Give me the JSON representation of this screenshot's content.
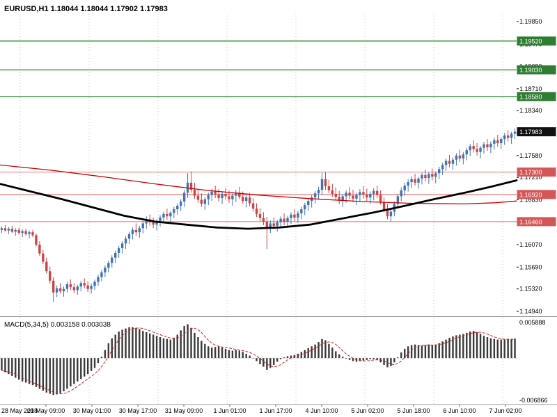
{
  "colors": {
    "background": "#ffffff",
    "bull": "#4173b3",
    "bear": "#cc4444",
    "resistance_line": "#2d8a2d",
    "resistance_badge": "#2e7d32",
    "support_line": "#f08080",
    "support_badge": "#d45757",
    "current_badge": "#111111",
    "ma_slow": "#000000",
    "ma_fast": "#cc0000",
    "macd_bar": "#3a3a3a",
    "macd_signal": "#cc2222",
    "axis_text": "#000000",
    "day_separator": "#c8c8c8",
    "panel_border": "#9a9a9a"
  },
  "chart_data": {
    "type": "candlestick",
    "symbol": "EURUSD",
    "timeframe": "H1",
    "title": "EURUSD,H1 1.18044 1.18044 1.17902 1.17983",
    "ohlc_display": {
      "open": "1.18044",
      "high": "1.18044",
      "low": "1.17902",
      "close": "1.17983"
    },
    "current_price": "1.17983",
    "price_range": {
      "axis_top": "1.19850",
      "axis_bottom": "1.14940"
    },
    "price_axis_labels": [
      "1.19850",
      "1.19470",
      "1.19090",
      "1.18710",
      "1.18340",
      "1.17960",
      "1.17580",
      "1.17210",
      "1.16830",
      "1.16450",
      "1.16070",
      "1.15690",
      "1.15320",
      "1.14940"
    ],
    "time_axis_labels": [
      "28 May 2018",
      "29 May 09:00",
      "30 May 01:00",
      "30 May 17:00",
      "31 May 09:00",
      "1 Jun 01:00",
      "1 Jun 17:00",
      "4 Jun 10:00",
      "5 Jun 02:00",
      "5 Jun 18:00",
      "6 Jun 10:00",
      "7 Jun 02:00"
    ],
    "resistance_levels": [
      "1.19520",
      "1.19030",
      "1.18580"
    ],
    "support_levels": [
      "1.17300",
      "1.16920",
      "1.16460"
    ],
    "ma_slow_points": [
      [
        0,
        1.171
      ],
      [
        0.06,
        1.1697
      ],
      [
        0.12,
        1.1684
      ],
      [
        0.18,
        1.167
      ],
      [
        0.24,
        1.1656
      ],
      [
        0.3,
        1.1646
      ],
      [
        0.36,
        1.1641
      ],
      [
        0.42,
        1.1636
      ],
      [
        0.48,
        1.1634
      ],
      [
        0.54,
        1.1636
      ],
      [
        0.6,
        1.1641
      ],
      [
        0.66,
        1.1651
      ],
      [
        0.72,
        1.1661
      ],
      [
        0.78,
        1.1672
      ],
      [
        0.84,
        1.1684
      ],
      [
        0.9,
        1.1695
      ],
      [
        0.95,
        1.1705
      ],
      [
        1.0,
        1.1716
      ]
    ],
    "ma_fast_points": [
      [
        0,
        1.1742
      ],
      [
        0.1,
        1.1733
      ],
      [
        0.2,
        1.1722
      ],
      [
        0.3,
        1.171
      ],
      [
        0.4,
        1.1699
      ],
      [
        0.5,
        1.1691
      ],
      [
        0.6,
        1.1685
      ],
      [
        0.7,
        1.168
      ],
      [
        0.8,
        1.1677
      ],
      [
        0.9,
        1.1676
      ],
      [
        0.96,
        1.1678
      ],
      [
        1.0,
        1.1681
      ]
    ],
    "candles": [
      [
        1.1632,
        1.1638,
        1.1627,
        1.1635
      ],
      [
        1.1635,
        1.164,
        1.1629,
        1.1631
      ],
      [
        1.1631,
        1.1637,
        1.1625,
        1.1634
      ],
      [
        1.1634,
        1.1639,
        1.1627,
        1.1629
      ],
      [
        1.1629,
        1.1635,
        1.1622,
        1.1632
      ],
      [
        1.1632,
        1.1636,
        1.1624,
        1.1627
      ],
      [
        1.1627,
        1.1633,
        1.162,
        1.163
      ],
      [
        1.163,
        1.1634,
        1.1622,
        1.1625
      ],
      [
        1.1625,
        1.1631,
        1.1618,
        1.1628
      ],
      [
        1.1628,
        1.1632,
        1.162,
        1.1623
      ],
      [
        1.1623,
        1.1626,
        1.1604,
        1.1607
      ],
      [
        1.1607,
        1.1613,
        1.1588,
        1.1592
      ],
      [
        1.1592,
        1.1598,
        1.1574,
        1.1578
      ],
      [
        1.1578,
        1.1585,
        1.1558,
        1.1562
      ],
      [
        1.1562,
        1.157,
        1.1541,
        1.1546
      ],
      [
        1.1546,
        1.1552,
        1.151,
        1.1526
      ],
      [
        1.1526,
        1.1538,
        1.1518,
        1.1533
      ],
      [
        1.1533,
        1.1542,
        1.1524,
        1.1528
      ],
      [
        1.1528,
        1.1536,
        1.1519,
        1.1532
      ],
      [
        1.1532,
        1.1544,
        1.1526,
        1.154
      ],
      [
        1.154,
        1.1548,
        1.153,
        1.1535
      ],
      [
        1.1535,
        1.1542,
        1.1525,
        1.153
      ],
      [
        1.153,
        1.1539,
        1.1522,
        1.1536
      ],
      [
        1.1536,
        1.1546,
        1.1528,
        1.1542
      ],
      [
        1.1542,
        1.155,
        1.1533,
        1.1538
      ],
      [
        1.1538,
        1.1545,
        1.1527,
        1.1532
      ],
      [
        1.1532,
        1.1541,
        1.1524,
        1.1537
      ],
      [
        1.1537,
        1.1548,
        1.153,
        1.1544
      ],
      [
        1.1544,
        1.1556,
        1.1537,
        1.1552
      ],
      [
        1.1552,
        1.1564,
        1.1545,
        1.156
      ],
      [
        1.156,
        1.1572,
        1.1552,
        1.1568
      ],
      [
        1.1568,
        1.158,
        1.156,
        1.1576
      ],
      [
        1.1576,
        1.1589,
        1.1568,
        1.1585
      ],
      [
        1.1585,
        1.1597,
        1.1576,
        1.1593
      ],
      [
        1.1593,
        1.1605,
        1.1585,
        1.1601
      ],
      [
        1.1601,
        1.1613,
        1.1592,
        1.1609
      ],
      [
        1.1609,
        1.1621,
        1.16,
        1.1617
      ],
      [
        1.1617,
        1.1629,
        1.1608,
        1.1625
      ],
      [
        1.1625,
        1.1636,
        1.1616,
        1.1632
      ],
      [
        1.1632,
        1.1643,
        1.1622,
        1.1628
      ],
      [
        1.1628,
        1.1639,
        1.1619,
        1.1635
      ],
      [
        1.1635,
        1.1647,
        1.1626,
        1.1643
      ],
      [
        1.1643,
        1.1655,
        1.1634,
        1.165
      ],
      [
        1.165,
        1.1658,
        1.1639,
        1.1645
      ],
      [
        1.1645,
        1.1653,
        1.1635,
        1.1641
      ],
      [
        1.1641,
        1.165,
        1.1631,
        1.1647
      ],
      [
        1.1647,
        1.1657,
        1.1638,
        1.1653
      ],
      [
        1.1653,
        1.1663,
        1.1644,
        1.1659
      ],
      [
        1.1659,
        1.1668,
        1.1649,
        1.1655
      ],
      [
        1.1655,
        1.1664,
        1.1645,
        1.1661
      ],
      [
        1.1661,
        1.1671,
        1.1652,
        1.1667
      ],
      [
        1.1667,
        1.1677,
        1.1658,
        1.1673
      ],
      [
        1.1673,
        1.1684,
        1.1664,
        1.168
      ],
      [
        1.168,
        1.17,
        1.1671,
        1.1695
      ],
      [
        1.1695,
        1.1728,
        1.1686,
        1.1712
      ],
      [
        1.1712,
        1.1731,
        1.1695,
        1.17
      ],
      [
        1.17,
        1.1712,
        1.1685,
        1.169
      ],
      [
        1.169,
        1.1701,
        1.1678,
        1.1683
      ],
      [
        1.1683,
        1.1694,
        1.1671,
        1.1676
      ],
      [
        1.1676,
        1.1688,
        1.1666,
        1.1684
      ],
      [
        1.1684,
        1.1695,
        1.1674,
        1.1691
      ],
      [
        1.1691,
        1.1702,
        1.1681,
        1.1697
      ],
      [
        1.1697,
        1.1707,
        1.1686,
        1.1692
      ],
      [
        1.1692,
        1.1701,
        1.168,
        1.1686
      ],
      [
        1.1686,
        1.1697,
        1.1676,
        1.1693
      ],
      [
        1.1693,
        1.1703,
        1.1683,
        1.1689
      ],
      [
        1.1689,
        1.1699,
        1.1678,
        1.1684
      ],
      [
        1.1684,
        1.1694,
        1.1673,
        1.169
      ],
      [
        1.169,
        1.17,
        1.1679,
        1.1695
      ],
      [
        1.1695,
        1.1705,
        1.1684,
        1.1688
      ],
      [
        1.1688,
        1.1697,
        1.1676,
        1.1681
      ],
      [
        1.1681,
        1.1691,
        1.167,
        1.1687
      ],
      [
        1.1687,
        1.1695,
        1.1672,
        1.1677
      ],
      [
        1.1677,
        1.1686,
        1.1663,
        1.1668
      ],
      [
        1.1668,
        1.1677,
        1.1654,
        1.1659
      ],
      [
        1.1659,
        1.1669,
        1.1646,
        1.1652
      ],
      [
        1.1652,
        1.1662,
        1.164,
        1.1646
      ],
      [
        1.1646,
        1.1654,
        1.16,
        1.1636
      ],
      [
        1.1636,
        1.1648,
        1.1627,
        1.1643
      ],
      [
        1.1643,
        1.1653,
        1.1633,
        1.1639
      ],
      [
        1.1639,
        1.1649,
        1.1629,
        1.1645
      ],
      [
        1.1645,
        1.1655,
        1.1635,
        1.1651
      ],
      [
        1.1651,
        1.166,
        1.164,
        1.1646
      ],
      [
        1.1646,
        1.1656,
        1.1636,
        1.1652
      ],
      [
        1.1652,
        1.1662,
        1.1642,
        1.1658
      ],
      [
        1.1658,
        1.1667,
        1.1647,
        1.1653
      ],
      [
        1.1653,
        1.1664,
        1.1644,
        1.166
      ],
      [
        1.166,
        1.1671,
        1.165,
        1.1667
      ],
      [
        1.1667,
        1.1678,
        1.1657,
        1.1674
      ],
      [
        1.1674,
        1.1685,
        1.1664,
        1.1681
      ],
      [
        1.1681,
        1.1691,
        1.167,
        1.1687
      ],
      [
        1.1687,
        1.1698,
        1.1677,
        1.1694
      ],
      [
        1.1694,
        1.1705,
        1.1684,
        1.17
      ],
      [
        1.17,
        1.1729,
        1.1691,
        1.1718
      ],
      [
        1.1718,
        1.173,
        1.17,
        1.1706
      ],
      [
        1.1706,
        1.1717,
        1.1694,
        1.1699
      ],
      [
        1.1699,
        1.171,
        1.1688,
        1.1693
      ],
      [
        1.1693,
        1.1704,
        1.1682,
        1.1688
      ],
      [
        1.1688,
        1.1698,
        1.1676,
        1.1682
      ],
      [
        1.1682,
        1.1693,
        1.1671,
        1.1689
      ],
      [
        1.1689,
        1.1699,
        1.1678,
        1.1695
      ],
      [
        1.1695,
        1.1705,
        1.1684,
        1.169
      ],
      [
        1.169,
        1.17,
        1.1679,
        1.1685
      ],
      [
        1.1685,
        1.1695,
        1.1674,
        1.1691
      ],
      [
        1.1691,
        1.1701,
        1.168,
        1.1696
      ],
      [
        1.1696,
        1.1706,
        1.1685,
        1.1692
      ],
      [
        1.1692,
        1.1702,
        1.1681,
        1.1687
      ],
      [
        1.1687,
        1.1697,
        1.1676,
        1.1693
      ],
      [
        1.1693,
        1.1703,
        1.1682,
        1.1698
      ],
      [
        1.1698,
        1.1707,
        1.1686,
        1.1691
      ],
      [
        1.1691,
        1.1699,
        1.1675,
        1.1679
      ],
      [
        1.1679,
        1.1687,
        1.1662,
        1.1666
      ],
      [
        1.1666,
        1.1676,
        1.165,
        1.1655
      ],
      [
        1.1655,
        1.1668,
        1.1646,
        1.1663
      ],
      [
        1.1663,
        1.168,
        1.1655,
        1.1676
      ],
      [
        1.1676,
        1.1693,
        1.1668,
        1.1689
      ],
      [
        1.1689,
        1.1704,
        1.1681,
        1.1699
      ],
      [
        1.1699,
        1.1712,
        1.169,
        1.1707
      ],
      [
        1.1707,
        1.1718,
        1.1697,
        1.1713
      ],
      [
        1.1713,
        1.1723,
        1.1703,
        1.1718
      ],
      [
        1.1718,
        1.1727,
        1.1707,
        1.1712
      ],
      [
        1.1712,
        1.1722,
        1.1702,
        1.1719
      ],
      [
        1.1719,
        1.1729,
        1.1709,
        1.1725
      ],
      [
        1.1725,
        1.1734,
        1.1714,
        1.172
      ],
      [
        1.172,
        1.173,
        1.171,
        1.1727
      ],
      [
        1.1727,
        1.1736,
        1.1716,
        1.1722
      ],
      [
        1.1722,
        1.1731,
        1.1711,
        1.1728
      ],
      [
        1.1728,
        1.1739,
        1.1718,
        1.1735
      ],
      [
        1.1735,
        1.1746,
        1.1725,
        1.1742
      ],
      [
        1.1742,
        1.1753,
        1.1732,
        1.1749
      ],
      [
        1.1749,
        1.1759,
        1.1738,
        1.1744
      ],
      [
        1.1744,
        1.1755,
        1.1734,
        1.1751
      ],
      [
        1.1751,
        1.1762,
        1.1741,
        1.1758
      ],
      [
        1.1758,
        1.1768,
        1.1747,
        1.1753
      ],
      [
        1.1753,
        1.1764,
        1.1743,
        1.176
      ],
      [
        1.176,
        1.1771,
        1.175,
        1.1767
      ],
      [
        1.1767,
        1.1778,
        1.1757,
        1.1774
      ],
      [
        1.1774,
        1.1784,
        1.1763,
        1.1769
      ],
      [
        1.1769,
        1.1779,
        1.1758,
        1.1764
      ],
      [
        1.1764,
        1.1774,
        1.1753,
        1.1771
      ],
      [
        1.1771,
        1.1781,
        1.1761,
        1.1777
      ],
      [
        1.1777,
        1.1786,
        1.1766,
        1.1772
      ],
      [
        1.1772,
        1.1782,
        1.1762,
        1.1778
      ],
      [
        1.1778,
        1.1788,
        1.1768,
        1.1784
      ],
      [
        1.1784,
        1.1793,
        1.1773,
        1.1779
      ],
      [
        1.1779,
        1.1789,
        1.1769,
        1.1786
      ],
      [
        1.1786,
        1.1796,
        1.1776,
        1.1792
      ],
      [
        1.1792,
        1.1801,
        1.1782,
        1.1788
      ],
      [
        1.1788,
        1.1798,
        1.1778,
        1.1795
      ],
      [
        1.1795,
        1.1804,
        1.1786,
        1.17983
      ]
    ],
    "macd": {
      "label_text": "MACD(5,34,5) 0.003158 0.003038",
      "name": "MACD(5,34,5)",
      "main_value": "0.003158",
      "signal_value": "0.003038",
      "axis_max_label": "0.005888",
      "axis_min_label": "-0.006866",
      "values": [
        -0.002,
        -0.0023,
        -0.0026,
        -0.0029,
        -0.0032,
        -0.0035,
        -0.0038,
        -0.004,
        -0.0042,
        -0.0044,
        -0.0047,
        -0.005,
        -0.0053,
        -0.0056,
        -0.0058,
        -0.006,
        -0.0059,
        -0.0057,
        -0.0054,
        -0.005,
        -0.0046,
        -0.0042,
        -0.0038,
        -0.0034,
        -0.003,
        -0.0026,
        -0.0021,
        -0.0016,
        -0.0008,
        0.0002,
        0.0013,
        0.0024,
        0.0032,
        0.0038,
        0.0043,
        0.0046,
        0.0048,
        0.005,
        0.005,
        0.0049,
        0.0047,
        0.0044,
        0.0042,
        0.004,
        0.0038,
        0.0036,
        0.0034,
        0.0032,
        0.0031,
        0.003,
        0.0033,
        0.0038,
        0.0045,
        0.0052,
        0.0055,
        0.0049,
        0.0041,
        0.0034,
        0.0028,
        0.0023,
        0.0019,
        0.0017,
        0.0018,
        0.0019,
        0.0017,
        0.0015,
        0.0013,
        0.0012,
        0.0013,
        0.0012,
        0.001,
        0.0007,
        0.0004,
        0.0,
        -0.0005,
        -0.001,
        -0.0014,
        -0.0019,
        -0.0016,
        -0.0011,
        -0.0006,
        -0.0002,
        0.0001,
        0.0003,
        0.0004,
        0.0005,
        0.0007,
        0.001,
        0.0013,
        0.0016,
        0.0019,
        0.0022,
        0.0026,
        0.0031,
        0.0029,
        0.0023,
        0.0017,
        0.0011,
        0.0006,
        0.0002,
        -0.0001,
        -0.0003,
        -0.0005,
        -0.0006,
        -0.0005,
        -0.0004,
        -0.0003,
        -0.0002,
        -0.0002,
        -0.0003,
        -0.0007,
        -0.0011,
        -0.0015,
        -0.0013,
        -0.0007,
        0.0001,
        0.0009,
        0.0015,
        0.0019,
        0.0021,
        0.0022,
        0.0021,
        0.002,
        0.0021,
        0.0022,
        0.0021,
        0.0022,
        0.0024,
        0.0027,
        0.003,
        0.0033,
        0.0035,
        0.0037,
        0.0038,
        0.0039,
        0.0041,
        0.0043,
        0.0044,
        0.0042,
        0.0039,
        0.0036,
        0.0034,
        0.0032,
        0.0031,
        0.003,
        0.003,
        0.003,
        0.0031,
        0.0031,
        0.003158
      ]
    }
  }
}
